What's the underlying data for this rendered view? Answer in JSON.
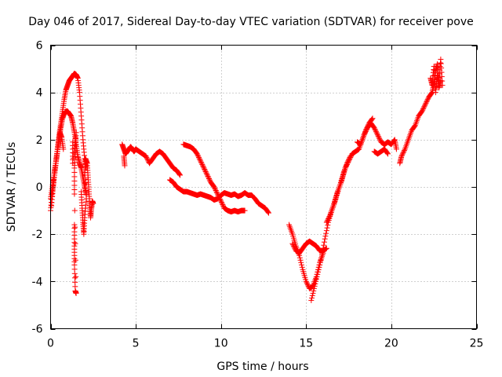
{
  "chart_data": {
    "type": "scatter",
    "title": "Day 046 of 2017, Sidereal Day-to-day VTEC variation (SDTVAR) for receiver pove",
    "xlabel": "GPS time / hours",
    "ylabel": "SDTVAR / TECUs",
    "xlim": [
      0,
      25
    ],
    "ylim": [
      -6,
      6
    ],
    "x_ticks": [
      0,
      5,
      10,
      15,
      20,
      25
    ],
    "y_ticks": [
      -6,
      -4,
      -2,
      0,
      2,
      4,
      6
    ],
    "x_tick_labels": [
      "0",
      "5",
      "10",
      "15",
      "20",
      "25"
    ],
    "y_tick_labels": [
      "-6",
      "-4",
      "-2",
      "0",
      "2",
      "4",
      "6"
    ],
    "grid": true,
    "marker": "+",
    "color": "#ff0000",
    "series": [
      {
        "name": "SDTVAR",
        "segments": [
          [
            [
              0.0,
              -1.0
            ],
            [
              0.1,
              -0.3
            ],
            [
              0.2,
              0.4
            ],
            [
              0.3,
              1.0
            ],
            [
              0.4,
              1.6
            ],
            [
              0.5,
              2.2
            ],
            [
              0.6,
              2.7
            ],
            [
              0.7,
              3.2
            ],
            [
              0.8,
              3.7
            ],
            [
              0.9,
              4.1
            ],
            [
              1.0,
              4.3
            ],
            [
              1.1,
              4.5
            ],
            [
              1.2,
              4.6
            ],
            [
              1.3,
              4.7
            ],
            [
              1.4,
              4.8
            ],
            [
              1.5,
              4.75
            ],
            [
              1.6,
              4.6
            ],
            [
              1.7,
              4.0
            ],
            [
              1.8,
              3.0
            ],
            [
              1.9,
              2.0
            ],
            [
              2.0,
              1.2
            ],
            [
              2.1,
              0.8
            ]
          ],
          [
            [
              0.0,
              -0.5
            ],
            [
              0.1,
              0.0
            ],
            [
              0.2,
              0.5
            ],
            [
              0.3,
              1.0
            ],
            [
              0.4,
              1.5
            ],
            [
              0.5,
              2.0
            ],
            [
              0.6,
              2.5
            ],
            [
              0.7,
              2.9
            ],
            [
              0.8,
              3.1
            ],
            [
              0.9,
              3.2
            ],
            [
              1.0,
              3.2
            ],
            [
              1.1,
              3.1
            ],
            [
              1.2,
              3.0
            ],
            [
              1.3,
              2.7
            ],
            [
              1.4,
              2.3
            ],
            [
              1.5,
              1.8
            ],
            [
              1.6,
              1.3
            ],
            [
              1.7,
              1.0
            ],
            [
              1.8,
              0.8
            ],
            [
              1.9,
              0.4
            ],
            [
              2.0,
              0.0
            ],
            [
              2.1,
              -0.3
            ]
          ],
          [
            [
              0.05,
              -0.8
            ],
            [
              0.15,
              0.0
            ],
            [
              0.25,
              0.6
            ],
            [
              0.35,
              1.2
            ],
            [
              0.45,
              1.8
            ],
            [
              0.55,
              2.3
            ],
            [
              0.65,
              2.1
            ],
            [
              0.75,
              1.6
            ]
          ],
          [
            [
              1.4,
              -1.6
            ],
            [
              1.4,
              -2.5
            ],
            [
              1.4,
              -3.3
            ],
            [
              1.45,
              -4.4
            ],
            [
              1.5,
              -4.5
            ],
            [
              1.4,
              -0.3
            ],
            [
              1.4,
              0.8
            ],
            [
              1.45,
              1.5
            ],
            [
              1.5,
              2.3
            ],
            [
              1.3,
              1.0
            ],
            [
              1.3,
              1.9
            ]
          ],
          [
            [
              1.8,
              -0.2
            ],
            [
              1.85,
              -0.9
            ],
            [
              1.9,
              -1.5
            ],
            [
              1.95,
              -2.0
            ],
            [
              2.0,
              -1.3
            ],
            [
              2.1,
              -0.5
            ],
            [
              2.0,
              0.5
            ],
            [
              2.05,
              1.2
            ],
            [
              2.15,
              1.0
            ],
            [
              2.2,
              0.4
            ],
            [
              2.25,
              -0.2
            ],
            [
              2.3,
              -0.8
            ],
            [
              2.35,
              -1.3
            ],
            [
              2.4,
              -0.9
            ],
            [
              2.45,
              -0.6
            ],
            [
              2.5,
              -0.7
            ]
          ],
          [
            [
              4.2,
              1.8
            ],
            [
              4.3,
              1.6
            ],
            [
              4.4,
              1.4
            ],
            [
              4.5,
              1.5
            ],
            [
              4.6,
              1.6
            ],
            [
              4.7,
              1.7
            ],
            [
              4.8,
              1.6
            ],
            [
              4.9,
              1.5
            ],
            [
              5.0,
              1.6
            ],
            [
              5.2,
              1.5
            ],
            [
              5.4,
              1.4
            ],
            [
              5.6,
              1.3
            ],
            [
              5.8,
              1.0
            ],
            [
              6.0,
              1.2
            ],
            [
              6.2,
              1.4
            ],
            [
              6.4,
              1.5
            ],
            [
              6.6,
              1.4
            ],
            [
              6.8,
              1.2
            ],
            [
              7.0,
              1.0
            ],
            [
              7.2,
              0.8
            ],
            [
              7.4,
              0.7
            ],
            [
              7.6,
              0.5
            ]
          ],
          [
            [
              4.3,
              1.3
            ],
            [
              4.35,
              0.9
            ]
          ],
          [
            [
              7.0,
              0.3
            ],
            [
              7.2,
              0.2
            ],
            [
              7.4,
              0.0
            ],
            [
              7.6,
              -0.1
            ],
            [
              7.8,
              -0.2
            ],
            [
              8.0,
              -0.2
            ],
            [
              8.2,
              -0.25
            ],
            [
              8.4,
              -0.3
            ],
            [
              8.6,
              -0.35
            ],
            [
              8.8,
              -0.3
            ],
            [
              9.0,
              -0.35
            ],
            [
              9.2,
              -0.4
            ],
            [
              9.4,
              -0.45
            ],
            [
              9.6,
              -0.55
            ],
            [
              9.8,
              -0.5
            ],
            [
              10.0,
              -0.35
            ],
            [
              10.2,
              -0.25
            ],
            [
              10.4,
              -0.3
            ],
            [
              10.6,
              -0.35
            ],
            [
              10.8,
              -0.3
            ],
            [
              11.0,
              -0.4
            ],
            [
              11.2,
              -0.35
            ],
            [
              11.4,
              -0.25
            ],
            [
              11.6,
              -0.35
            ],
            [
              11.8,
              -0.35
            ],
            [
              12.0,
              -0.5
            ],
            [
              12.2,
              -0.7
            ],
            [
              12.4,
              -0.8
            ],
            [
              12.6,
              -0.9
            ],
            [
              12.8,
              -1.1
            ]
          ],
          [
            [
              7.8,
              1.8
            ],
            [
              8.0,
              1.75
            ],
            [
              8.2,
              1.7
            ],
            [
              8.4,
              1.6
            ],
            [
              8.6,
              1.4
            ],
            [
              8.8,
              1.1
            ],
            [
              9.0,
              0.8
            ],
            [
              9.2,
              0.5
            ],
            [
              9.4,
              0.2
            ],
            [
              9.6,
              0.0
            ],
            [
              9.8,
              -0.3
            ],
            [
              10.0,
              -0.6
            ],
            [
              10.2,
              -0.9
            ],
            [
              10.4,
              -1.0
            ],
            [
              10.6,
              -1.05
            ],
            [
              10.8,
              -1.0
            ],
            [
              11.0,
              -1.05
            ],
            [
              11.2,
              -1.0
            ],
            [
              11.4,
              -1.0
            ]
          ],
          [
            [
              14.0,
              -1.6
            ],
            [
              14.2,
              -2.0
            ],
            [
              14.4,
              -2.5
            ],
            [
              14.6,
              -2.9
            ],
            [
              14.8,
              -3.5
            ],
            [
              15.0,
              -4.0
            ],
            [
              15.2,
              -4.3
            ],
            [
              15.4,
              -4.2
            ],
            [
              15.6,
              -3.8
            ],
            [
              15.8,
              -3.2
            ],
            [
              16.0,
              -2.8
            ]
          ],
          [
            [
              14.2,
              -2.4
            ],
            [
              14.4,
              -2.7
            ],
            [
              14.6,
              -2.8
            ],
            [
              14.8,
              -2.6
            ],
            [
              15.0,
              -2.4
            ],
            [
              15.2,
              -2.3
            ],
            [
              15.4,
              -2.4
            ],
            [
              15.6,
              -2.5
            ],
            [
              15.8,
              -2.7
            ],
            [
              16.0,
              -2.7
            ],
            [
              16.2,
              -2.6
            ]
          ],
          [
            [
              15.3,
              -4.8
            ],
            [
              15.5,
              -4.2
            ],
            [
              15.7,
              -3.6
            ],
            [
              15.9,
              -3.0
            ],
            [
              16.1,
              -2.2
            ],
            [
              16.3,
              -1.5
            ],
            [
              16.5,
              -1.0
            ],
            [
              16.7,
              -0.6
            ],
            [
              16.9,
              -0.1
            ],
            [
              17.1,
              0.3
            ],
            [
              17.3,
              0.8
            ],
            [
              17.5,
              1.1
            ],
            [
              17.7,
              1.4
            ],
            [
              17.9,
              1.5
            ],
            [
              18.1,
              1.6
            ],
            [
              18.3,
              2.0
            ],
            [
              18.5,
              2.4
            ],
            [
              18.7,
              2.7
            ],
            [
              18.9,
              2.9
            ]
          ],
          [
            [
              16.2,
              -1.5
            ],
            [
              16.4,
              -1.2
            ],
            [
              16.6,
              -0.8
            ],
            [
              16.8,
              -0.3
            ],
            [
              17.0,
              0.1
            ],
            [
              17.2,
              0.6
            ],
            [
              17.4,
              1.0
            ],
            [
              17.6,
              1.3
            ]
          ],
          [
            [
              18.0,
              1.9
            ],
            [
              18.2,
              1.8
            ],
            [
              18.4,
              2.2
            ],
            [
              18.6,
              2.5
            ],
            [
              18.8,
              2.7
            ],
            [
              19.0,
              2.5
            ],
            [
              19.2,
              2.2
            ],
            [
              19.4,
              1.9
            ],
            [
              19.6,
              1.8
            ],
            [
              19.8,
              1.9
            ],
            [
              20.0,
              1.8
            ],
            [
              20.2,
              2.0
            ],
            [
              20.3,
              1.6
            ]
          ],
          [
            [
              19.0,
              1.5
            ],
            [
              19.2,
              1.4
            ],
            [
              19.4,
              1.5
            ],
            [
              19.6,
              1.6
            ],
            [
              19.8,
              1.4
            ]
          ],
          [
            [
              20.5,
              1.0
            ],
            [
              20.6,
              1.3
            ],
            [
              20.8,
              1.6
            ],
            [
              21.0,
              2.0
            ],
            [
              21.2,
              2.4
            ],
            [
              21.4,
              2.6
            ],
            [
              21.6,
              3.0
            ],
            [
              21.8,
              3.2
            ],
            [
              22.0,
              3.5
            ],
            [
              22.2,
              3.8
            ],
            [
              22.4,
              4.0
            ],
            [
              22.5,
              4.4
            ],
            [
              22.6,
              4.9
            ],
            [
              22.7,
              5.2
            ],
            [
              22.8,
              4.5
            ],
            [
              22.9,
              5.4
            ],
            [
              23.0,
              4.3
            ]
          ],
          [
            [
              22.3,
              4.6
            ],
            [
              22.4,
              4.3
            ],
            [
              22.5,
              5.1
            ],
            [
              22.6,
              4.0
            ],
            [
              22.7,
              4.7
            ],
            [
              22.8,
              4.2
            ],
            [
              22.9,
              4.5
            ]
          ]
        ]
      }
    ]
  }
}
